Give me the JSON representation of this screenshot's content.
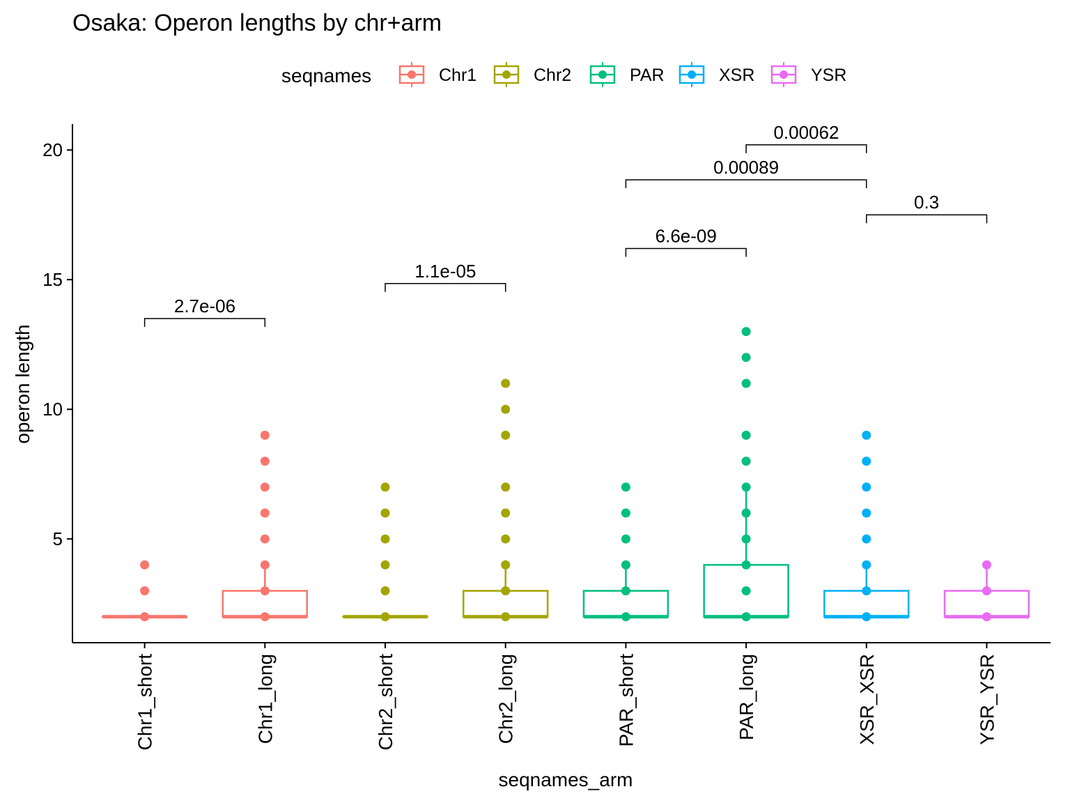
{
  "chart_data": {
    "type": "box",
    "title": "Osaka: Operon lengths by chr+arm",
    "xlabel": "seqnames_arm",
    "ylabel": "operon length",
    "ylim": [
      1,
      21
    ],
    "yticks": [
      5,
      10,
      15,
      20
    ],
    "grid": false,
    "legend": {
      "title": "seqnames",
      "position": "top",
      "entries": [
        {
          "label": "Chr1",
          "color": "#F8766D"
        },
        {
          "label": "Chr2",
          "color": "#A3A500"
        },
        {
          "label": "PAR",
          "color": "#00BF7D"
        },
        {
          "label": "XSR",
          "color": "#00B0F6"
        },
        {
          "label": "YSR",
          "color": "#E76BF3"
        }
      ]
    },
    "categories": [
      "Chr1_short",
      "Chr1_long",
      "Chr2_short",
      "Chr2_long",
      "PAR_short",
      "PAR_long",
      "XSR_XSR",
      "YSR_YSR"
    ],
    "boxes": [
      {
        "category": "Chr1_short",
        "group": "Chr1",
        "q1": 2,
        "median": 2,
        "q3": 2,
        "whisker_low": 2,
        "whisker_high": 2,
        "points": [
          2,
          3,
          4
        ]
      },
      {
        "category": "Chr1_long",
        "group": "Chr1",
        "q1": 2,
        "median": 2,
        "q3": 3,
        "whisker_low": 2,
        "whisker_high": 4,
        "points": [
          2,
          3,
          4,
          5,
          6,
          7,
          8,
          9
        ]
      },
      {
        "category": "Chr2_short",
        "group": "Chr2",
        "q1": 2,
        "median": 2,
        "q3": 2,
        "whisker_low": 2,
        "whisker_high": 2,
        "points": [
          2,
          3,
          4,
          5,
          6,
          7
        ]
      },
      {
        "category": "Chr2_long",
        "group": "Chr2",
        "q1": 2,
        "median": 2,
        "q3": 3,
        "whisker_low": 2,
        "whisker_high": 4,
        "points": [
          2,
          3,
          4,
          5,
          6,
          7,
          9,
          10,
          11
        ]
      },
      {
        "category": "PAR_short",
        "group": "PAR",
        "q1": 2,
        "median": 2,
        "q3": 3,
        "whisker_low": 2,
        "whisker_high": 4,
        "points": [
          2,
          3,
          4,
          5,
          6,
          7
        ]
      },
      {
        "category": "PAR_long",
        "group": "PAR",
        "q1": 2,
        "median": 2,
        "q3": 4,
        "whisker_low": 2,
        "whisker_high": 7,
        "points": [
          2,
          3,
          4,
          5,
          6,
          7,
          8,
          9,
          11,
          12,
          13
        ]
      },
      {
        "category": "XSR_XSR",
        "group": "XSR",
        "q1": 2,
        "median": 2,
        "q3": 3,
        "whisker_low": 2,
        "whisker_high": 4,
        "points": [
          2,
          3,
          4,
          5,
          6,
          7,
          8,
          9
        ]
      },
      {
        "category": "YSR_YSR",
        "group": "YSR",
        "q1": 2,
        "median": 2,
        "q3": 3,
        "whisker_low": 2,
        "whisker_high": 4,
        "points": [
          2,
          3,
          4
        ]
      }
    ],
    "comparisons": [
      {
        "from": "Chr1_short",
        "to": "Chr1_long",
        "label": "2.7e-06",
        "y": 13.5
      },
      {
        "from": "Chr2_short",
        "to": "Chr2_long",
        "label": "1.1e-05",
        "y": 14.85
      },
      {
        "from": "PAR_short",
        "to": "PAR_long",
        "label": "6.6e-09",
        "y": 16.2
      },
      {
        "from": "PAR_short",
        "to": "XSR_XSR",
        "label": "0.00089",
        "y": 18.85
      },
      {
        "from": "XSR_XSR",
        "to": "YSR_YSR",
        "label": "0.3",
        "y": 17.5
      },
      {
        "from": "PAR_long",
        "to": "XSR_XSR",
        "label": "0.00062",
        "y": 20.2
      }
    ]
  }
}
